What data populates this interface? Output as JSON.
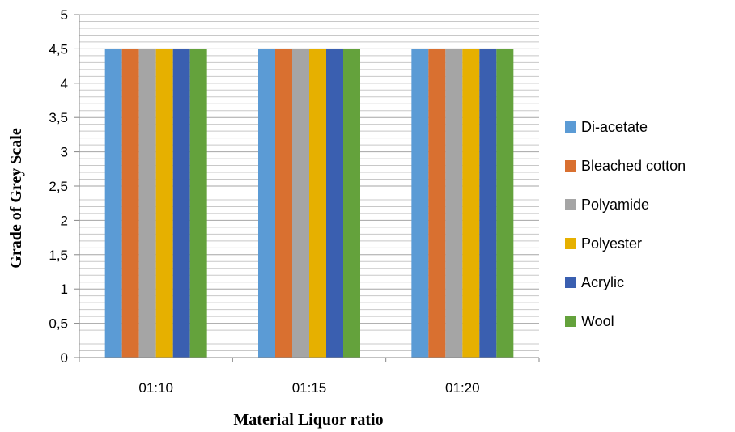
{
  "chart_data": {
    "type": "bar",
    "title": "",
    "xlabel": "Material Liquor ratio",
    "ylabel": "Grade of Grey Scale",
    "categories": [
      "01:10",
      "01:15",
      "01:20"
    ],
    "ylim": [
      0,
      5
    ],
    "y_ticks": [
      "0",
      "0,5",
      "1",
      "1,5",
      "2",
      "2,5",
      "3",
      "3,5",
      "4",
      "4,5",
      "5"
    ],
    "grid": "horizontal, minor lines every 0.1",
    "legend_position": "right",
    "series": [
      {
        "name": "Di-acetate",
        "color": "#5B9BD5",
        "values": [
          4.5,
          4.5,
          4.5
        ]
      },
      {
        "name": "Bleached cotton",
        "color": "#D97030",
        "values": [
          4.5,
          4.5,
          4.5
        ]
      },
      {
        "name": "Polyamide",
        "color": "#A5A5A5",
        "values": [
          4.5,
          4.5,
          4.5
        ]
      },
      {
        "name": "Polyester",
        "color": "#E6B000",
        "values": [
          4.5,
          4.5,
          4.5
        ]
      },
      {
        "name": "Acrylic",
        "color": "#3A5FB0",
        "values": [
          4.5,
          4.5,
          4.5
        ]
      },
      {
        "name": "Wool",
        "color": "#64A23C",
        "values": [
          4.5,
          4.5,
          4.5
        ]
      }
    ]
  }
}
